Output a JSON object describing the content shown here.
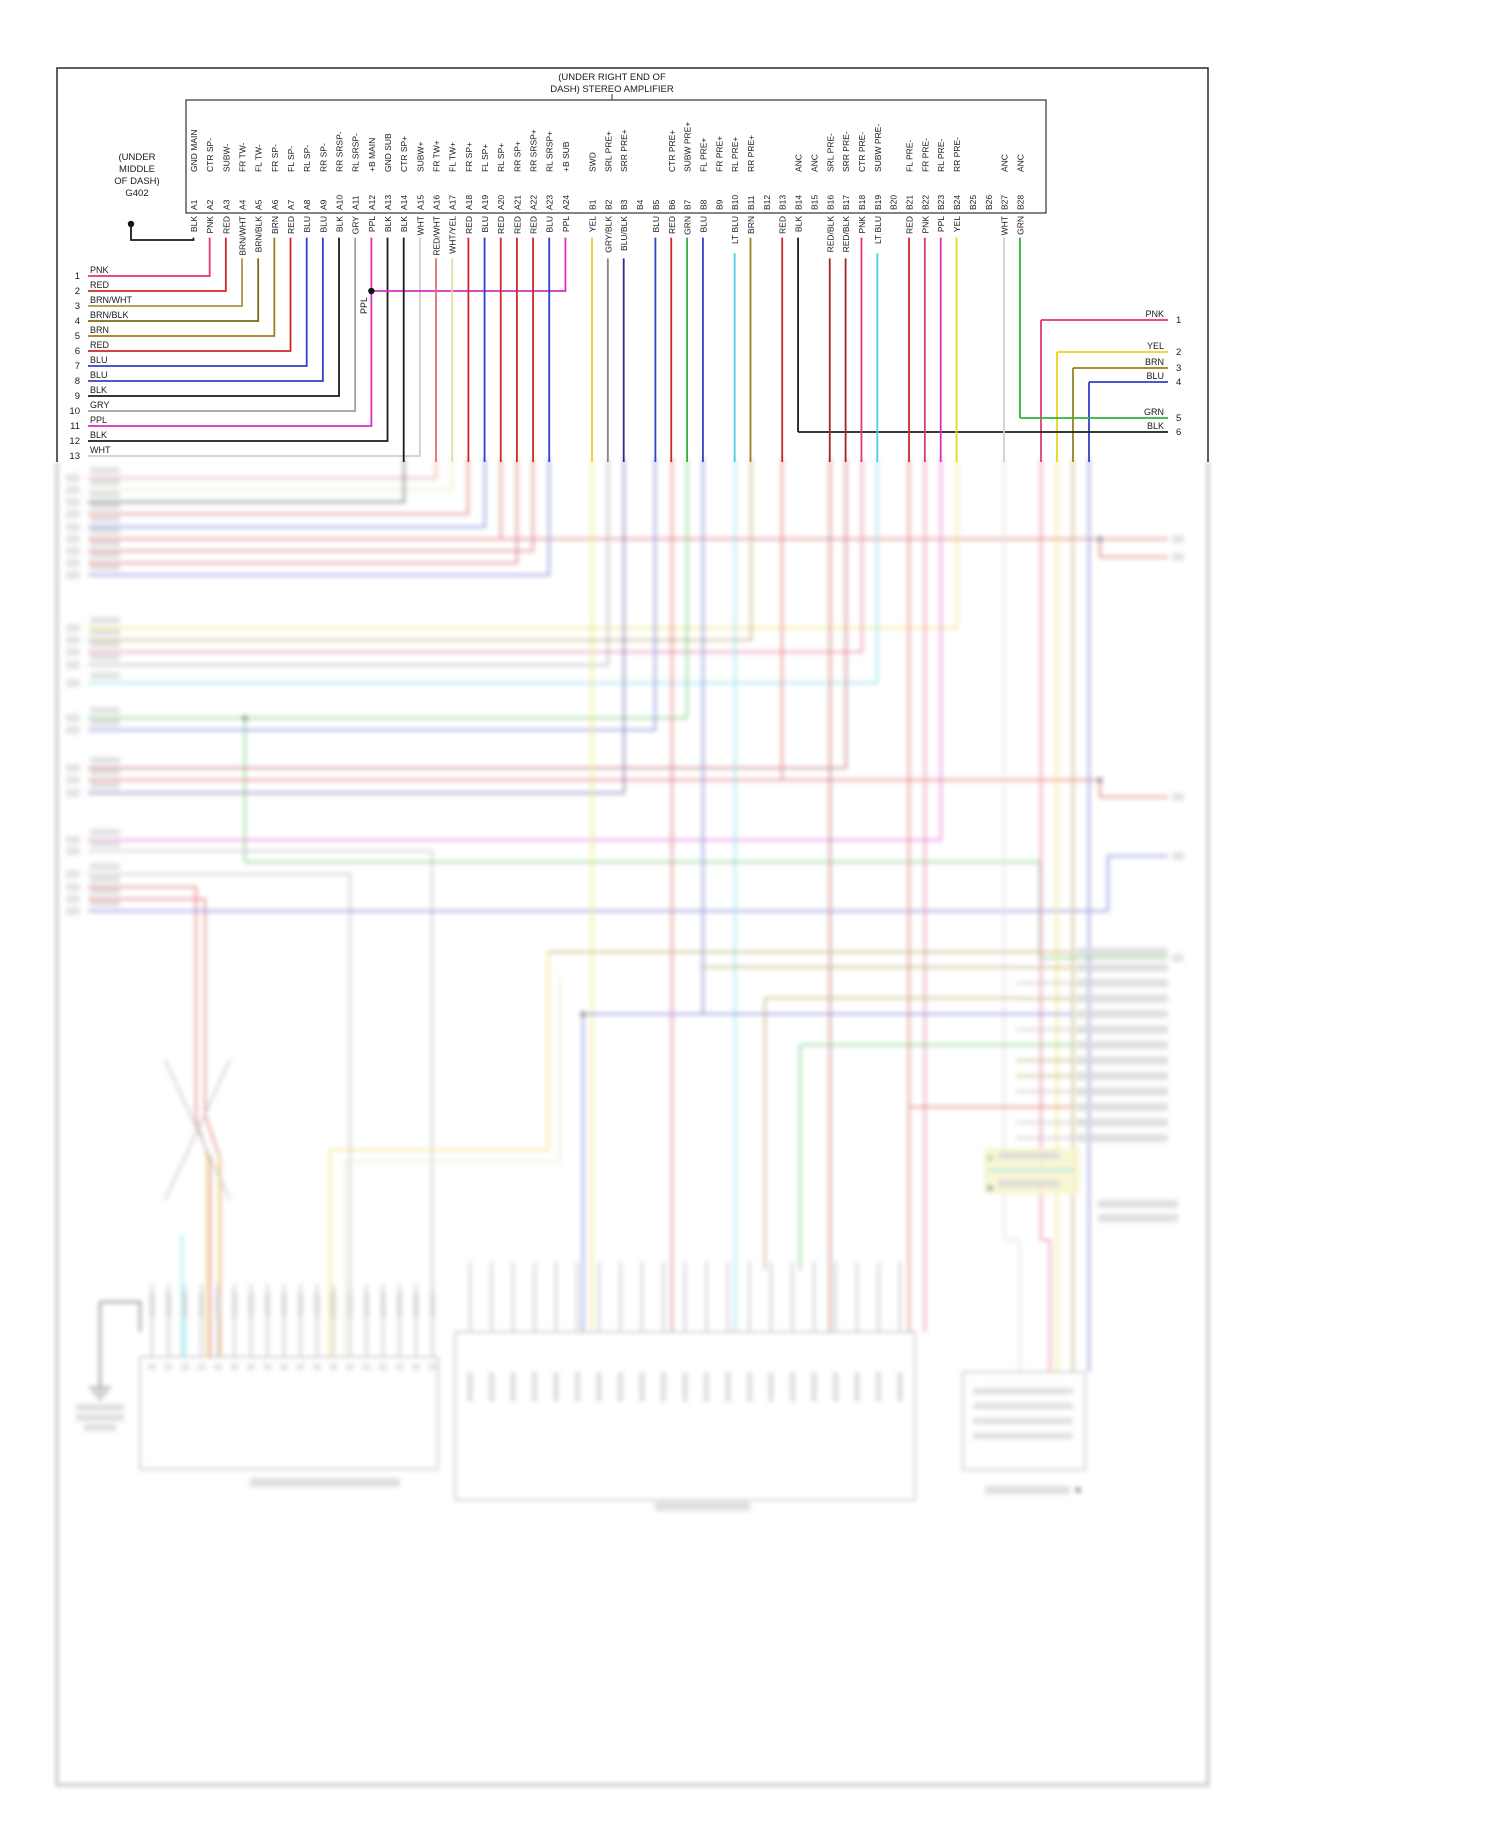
{
  "amplifier": {
    "location_line1": "(UNDER RIGHT END OF",
    "location_line2": "DASH) STEREO AMPLIFIER"
  },
  "ground_g402": {
    "line1": "(UNDER",
    "line2": "MIDDLE",
    "line3": "OF DASH)",
    "line4": "G402"
  },
  "ppl_junction_label": "PPL",
  "connector_a": {
    "pins": [
      {
        "pin": "A1",
        "signal": "GND MAIN",
        "color": "BLK"
      },
      {
        "pin": "A2",
        "signal": "CTR SP-",
        "color": "PNK"
      },
      {
        "pin": "A3",
        "signal": "SUBW-",
        "color": "RED"
      },
      {
        "pin": "A4",
        "signal": "FR TW-",
        "color": "BRN/WHT"
      },
      {
        "pin": "A5",
        "signal": "FL TW-",
        "color": "BRN/BLK"
      },
      {
        "pin": "A6",
        "signal": "FR SP-",
        "color": "BRN"
      },
      {
        "pin": "A7",
        "signal": "FL SP-",
        "color": "RED"
      },
      {
        "pin": "A8",
        "signal": "RL SP-",
        "color": "BLU"
      },
      {
        "pin": "A9",
        "signal": "RR SP-",
        "color": "BLU"
      },
      {
        "pin": "A10",
        "signal": "RR SRSP-",
        "color": "BLK"
      },
      {
        "pin": "A11",
        "signal": "RL SRSP-",
        "color": "GRY"
      },
      {
        "pin": "A12",
        "signal": "+B MAIN",
        "color": "PPL"
      },
      {
        "pin": "A13",
        "signal": "GND SUB",
        "color": "BLK"
      },
      {
        "pin": "A14",
        "signal": "CTR SP+",
        "color": "BLK"
      },
      {
        "pin": "A15",
        "signal": "SUBW+",
        "color": "WHT"
      },
      {
        "pin": "A16",
        "signal": "FR TW+",
        "color": "RED/WHT"
      },
      {
        "pin": "A17",
        "signal": "FL TW+",
        "color": "WHT/YEL"
      },
      {
        "pin": "A18",
        "signal": "FR SP+",
        "color": "RED"
      },
      {
        "pin": "A19",
        "signal": "FL SP+",
        "color": "BLU"
      },
      {
        "pin": "A20",
        "signal": "RL SP+",
        "color": "RED"
      },
      {
        "pin": "A21",
        "signal": "RR SP+",
        "color": "RED"
      },
      {
        "pin": "A22",
        "signal": "RR SRSP+",
        "color": "RED"
      },
      {
        "pin": "A23",
        "signal": "RL SRSP+",
        "color": "BLU"
      },
      {
        "pin": "A24",
        "signal": "+B SUB",
        "color": "PPL"
      }
    ]
  },
  "connector_b": {
    "pins": [
      {
        "pin": "B1",
        "signal": "SWD",
        "color": "YEL"
      },
      {
        "pin": "B2",
        "signal": "SRL PRE+",
        "color": "GRY/BLK"
      },
      {
        "pin": "B3",
        "signal": "SRR PRE+",
        "color": "BLU/BLK"
      },
      {
        "pin": "B4",
        "signal": "",
        "color": ""
      },
      {
        "pin": "B5",
        "signal": "",
        "color": "BLU"
      },
      {
        "pin": "B6",
        "signal": "CTR PRE+",
        "color": "RED"
      },
      {
        "pin": "B7",
        "signal": "SUBW PRE+",
        "color": "GRN"
      },
      {
        "pin": "B8",
        "signal": "FL PRE+",
        "color": "BLU"
      },
      {
        "pin": "B9",
        "signal": "FR PRE+",
        "color": ""
      },
      {
        "pin": "B10",
        "signal": "RL PRE+",
        "color": "LT BLU"
      },
      {
        "pin": "B11",
        "signal": "RR PRE+",
        "color": "BRN"
      },
      {
        "pin": "B12",
        "signal": "",
        "color": ""
      },
      {
        "pin": "B13",
        "signal": "",
        "color": "RED"
      },
      {
        "pin": "B14",
        "signal": "ANC",
        "color": "BLK"
      },
      {
        "pin": "B15",
        "signal": "ANC",
        "color": ""
      },
      {
        "pin": "B16",
        "signal": "SRL PRE-",
        "color": "RED/BLK"
      },
      {
        "pin": "B17",
        "signal": "SRR PRE-",
        "color": "RED/BLK"
      },
      {
        "pin": "B18",
        "signal": "CTR PRE-",
        "color": "PNK"
      },
      {
        "pin": "B19",
        "signal": "SUBW PRE-",
        "color": "LT BLU"
      },
      {
        "pin": "B20",
        "signal": "",
        "color": ""
      },
      {
        "pin": "B21",
        "signal": "FL PRE-",
        "color": "RED"
      },
      {
        "pin": "B22",
        "signal": "FR PRE-",
        "color": "PNK"
      },
      {
        "pin": "B23",
        "signal": "RL PRE-",
        "color": "PPL"
      },
      {
        "pin": "B24",
        "signal": "RR PRE-",
        "color": "YEL"
      },
      {
        "pin": "B25",
        "signal": "",
        "color": ""
      },
      {
        "pin": "B26",
        "signal": "",
        "color": ""
      },
      {
        "pin": "B27",
        "signal": "ANC",
        "color": "WHT"
      },
      {
        "pin": "B28",
        "signal": "ANC",
        "color": "GRN"
      }
    ]
  },
  "left_wires": [
    {
      "n": "1",
      "color": "PNK"
    },
    {
      "n": "2",
      "color": "RED"
    },
    {
      "n": "3",
      "color": "BRN/WHT"
    },
    {
      "n": "4",
      "color": "BRN/BLK"
    },
    {
      "n": "5",
      "color": "BRN"
    },
    {
      "n": "6",
      "color": "RED"
    },
    {
      "n": "7",
      "color": "BLU"
    },
    {
      "n": "8",
      "color": "BLU"
    },
    {
      "n": "9",
      "color": "BLK"
    },
    {
      "n": "10",
      "color": "GRY"
    },
    {
      "n": "11",
      "color": "PPL"
    },
    {
      "n": "12",
      "color": "BLK"
    },
    {
      "n": "13",
      "color": "WHT"
    }
  ],
  "right_wires": [
    {
      "n": "1",
      "color": "PNK"
    },
    {
      "n": "2",
      "color": "YEL"
    },
    {
      "n": "3",
      "color": "BRN"
    },
    {
      "n": "4",
      "color": "BLU"
    },
    {
      "n": "5",
      "color": "GRN"
    },
    {
      "n": "6",
      "color": "BLK"
    }
  ],
  "palette": {
    "PNK": "#e03a6e",
    "RED": "#cf2626",
    "BRN/WHT": "#ad9440",
    "BRN/BLK": "#7d6a16",
    "BRN": "#997f1f",
    "BLU": "#3340c8",
    "BLK": "#1b1b1b",
    "GRY": "#9e9ea2",
    "PPL": "#d62fc4",
    "WHT": "#cfcfcf",
    "RED/WHT": "#e07070",
    "WHT/YEL": "#e4dca2",
    "YEL": "#e8d51d",
    "GRY/BLK": "#84848c",
    "BLU/BLK": "#2c2c86",
    "GRN": "#2eb33e",
    "LT BLU": "#49cfe0",
    "RED/BLK": "#a82222"
  }
}
